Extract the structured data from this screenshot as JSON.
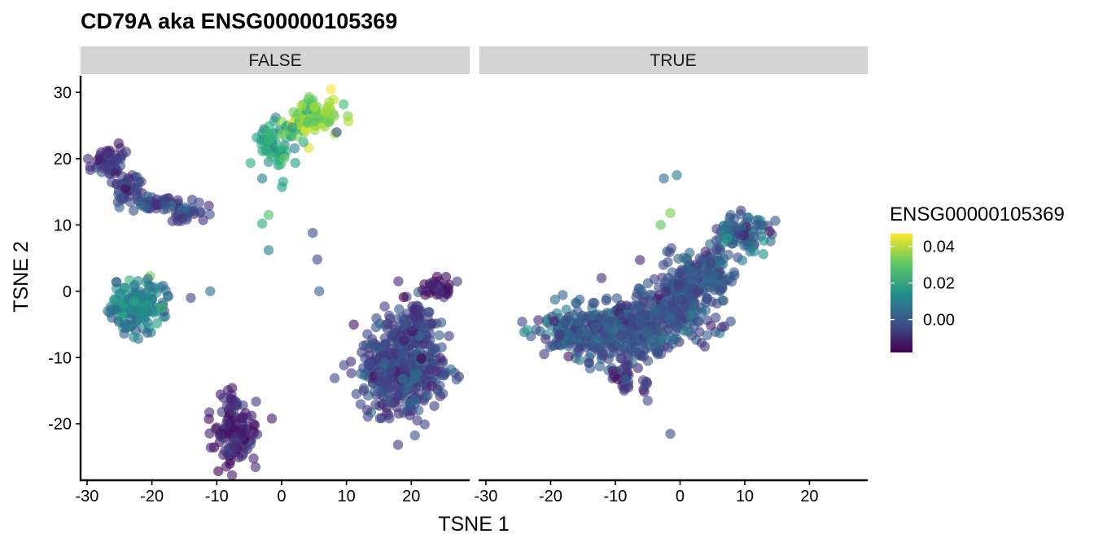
{
  "chart_data": {
    "type": "scatter",
    "title": "CD79A  aka ENSG00000105369",
    "xlabel": "TSNE 1",
    "ylabel": "TSNE 2",
    "xlim": [
      -31,
      29
    ],
    "ylim": [
      -28.5,
      32.5
    ],
    "x_ticks": [
      -30,
      -20,
      -10,
      0,
      10,
      20
    ],
    "x_tick_labels": [
      "-30",
      "-20",
      "-10",
      "0",
      "10",
      "20"
    ],
    "y_ticks": [
      -20,
      -10,
      0,
      10,
      20,
      30
    ],
    "y_tick_labels": [
      "-20",
      "-10",
      "0",
      "10",
      "20",
      "30"
    ],
    "grid": false,
    "facets": [
      "FALSE",
      "TRUE"
    ],
    "legend": {
      "title": "ENSG00000105369",
      "position": "right",
      "range": [
        -0.018,
        0.047
      ],
      "breaks": [
        0.0,
        0.02,
        0.04
      ],
      "break_labels": [
        "0.00",
        "0.02",
        "0.04"
      ],
      "colormap": "viridis"
    },
    "panels": [
      {
        "facet": "FALSE",
        "clusters": [
          {
            "cx": -26.5,
            "cy": 19.5,
            "sx": 1.2,
            "sy": 0.9,
            "n": 60,
            "v": -0.008,
            "vs": 0.004
          },
          {
            "cx": -24.0,
            "cy": 15.5,
            "sx": 1.4,
            "sy": 1.0,
            "n": 40,
            "v": -0.006,
            "vs": 0.004
          },
          {
            "cx": -19.5,
            "cy": 13.2,
            "sx": 2.2,
            "sy": 0.6,
            "n": 50,
            "v": -0.004,
            "vs": 0.004
          },
          {
            "cx": -14.5,
            "cy": 11.5,
            "sx": 1.4,
            "sy": 0.6,
            "n": 25,
            "v": -0.004,
            "vs": 0.004
          },
          {
            "cx": -22.0,
            "cy": -2.0,
            "sx": 2.2,
            "sy": 2.0,
            "n": 160,
            "v": 0.012,
            "vs": 0.007
          },
          {
            "cx": 18.5,
            "cy": -11.5,
            "sx": 3.6,
            "sy": 3.6,
            "n": 420,
            "v": -0.004,
            "vs": 0.005
          },
          {
            "cx": 21.0,
            "cy": -4.5,
            "sx": 1.6,
            "sy": 2.0,
            "n": 60,
            "v": -0.006,
            "vs": 0.005
          },
          {
            "cx": 24.0,
            "cy": 0.5,
            "sx": 1.2,
            "sy": 0.8,
            "n": 35,
            "v": -0.012,
            "vs": 0.004
          },
          {
            "cx": -7.0,
            "cy": -22.0,
            "sx": 1.5,
            "sy": 2.2,
            "n": 110,
            "v": -0.012,
            "vs": 0.004
          },
          {
            "cx": -7.5,
            "cy": -17.0,
            "sx": 0.8,
            "sy": 1.2,
            "n": 20,
            "v": -0.012,
            "vs": 0.004
          },
          {
            "cx": -1.0,
            "cy": 22.0,
            "sx": 1.2,
            "sy": 2.0,
            "n": 60,
            "v": 0.018,
            "vs": 0.006
          },
          {
            "cx": 2.5,
            "cy": 24.5,
            "sx": 1.3,
            "sy": 1.3,
            "n": 30,
            "v": 0.03,
            "vs": 0.008
          },
          {
            "cx": 6.0,
            "cy": 26.5,
            "sx": 1.7,
            "sy": 1.3,
            "n": 70,
            "v": 0.035,
            "vs": 0.007
          }
        ],
        "points": [
          {
            "x": -3.0,
            "y": 10.2,
            "v": 0.022
          },
          {
            "x": -2.0,
            "y": 11.5,
            "v": 0.028
          },
          {
            "x": -2.0,
            "y": 6.2,
            "v": 0.01
          },
          {
            "x": 4.8,
            "y": 8.8,
            "v": -0.002
          },
          {
            "x": 5.5,
            "y": 4.8,
            "v": -0.004
          },
          {
            "x": 5.8,
            "y": 0.0,
            "v": 0.002
          },
          {
            "x": -11.0,
            "y": 0.0,
            "v": 0.006
          },
          {
            "x": -14.0,
            "y": -1.0,
            "v": -0.004
          },
          {
            "x": -1.5,
            "y": -19.2,
            "v": -0.013
          },
          {
            "x": -3.0,
            "y": 17.0,
            "v": 0.01
          },
          {
            "x": 18.0,
            "y": 1.5,
            "v": -0.01
          },
          {
            "x": 8.5,
            "y": 24.0,
            "v": -0.002
          }
        ]
      },
      {
        "facet": "TRUE",
        "clusters": [
          {
            "cx": -17.5,
            "cy": -5.5,
            "sx": 2.5,
            "sy": 1.8,
            "n": 100,
            "v": 0.004,
            "vs": 0.006
          },
          {
            "cx": -11.0,
            "cy": -6.5,
            "sx": 3.0,
            "sy": 2.3,
            "n": 180,
            "v": -0.001,
            "vs": 0.005
          },
          {
            "cx": -5.0,
            "cy": -4.5,
            "sx": 2.8,
            "sy": 2.8,
            "n": 200,
            "v": -0.001,
            "vs": 0.005
          },
          {
            "cx": 1.0,
            "cy": -1.0,
            "sx": 2.4,
            "sy": 2.8,
            "n": 200,
            "v": -0.001,
            "vs": 0.005
          },
          {
            "cx": 5.0,
            "cy": 3.5,
            "sx": 2.0,
            "sy": 1.6,
            "n": 80,
            "v": 0.0,
            "vs": 0.005
          },
          {
            "cx": 9.5,
            "cy": 9.0,
            "sx": 2.0,
            "sy": 1.3,
            "n": 90,
            "v": 0.004,
            "vs": 0.006
          },
          {
            "cx": -9.0,
            "cy": -13.0,
            "sx": 0.8,
            "sy": 1.4,
            "n": 25,
            "v": -0.008,
            "vs": 0.004
          },
          {
            "cx": -5.5,
            "cy": -15.0,
            "sx": 0.4,
            "sy": 0.8,
            "n": 6,
            "v": -0.006,
            "vs": 0.003
          }
        ],
        "points": [
          {
            "x": -2.5,
            "y": 17.0,
            "v": 0.006
          },
          {
            "x": -0.5,
            "y": 17.5,
            "v": 0.01
          },
          {
            "x": -3.0,
            "y": 10.0,
            "v": 0.03
          },
          {
            "x": -1.5,
            "y": 11.8,
            "v": 0.034
          },
          {
            "x": -2.0,
            "y": 6.0,
            "v": -0.002
          },
          {
            "x": -1.5,
            "y": -21.5,
            "v": -0.002
          },
          {
            "x": -5.0,
            "y": -16.5,
            "v": -0.004
          }
        ]
      }
    ]
  }
}
